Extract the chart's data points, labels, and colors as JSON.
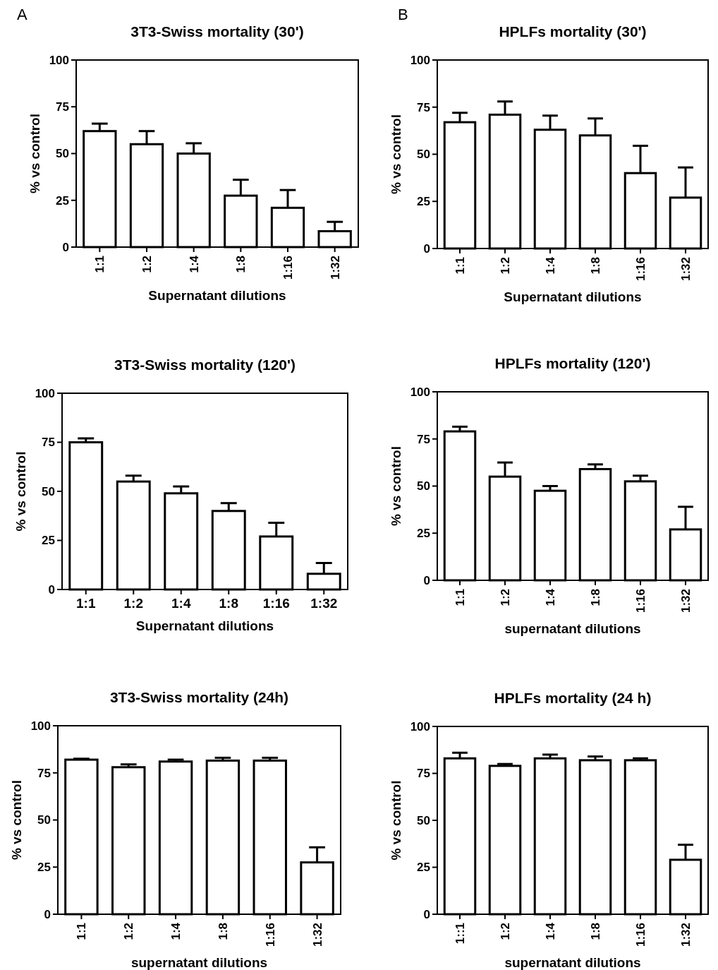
{
  "chart_data": [
    {
      "type": "bar",
      "title": "3T3-Swiss mortality (30')",
      "xlabel": "Supernatant dilutions",
      "ylabel": "% vs control",
      "annotations": [
        "A"
      ],
      "categories": [
        "1:1",
        "1:2",
        "1:4",
        "1:8",
        "1:16",
        "1:32"
      ],
      "values": [
        62,
        55,
        50,
        27.5,
        21,
        8.5
      ],
      "errors": [
        [
          62,
          66
        ],
        [
          55,
          62
        ],
        [
          50,
          55.5
        ],
        [
          27.5,
          36
        ],
        [
          21,
          30.5
        ],
        [
          8.5,
          13.5
        ]
      ],
      "color": "#ffffff",
      "ylim": [
        0,
        100
      ],
      "yticks": [
        0,
        25,
        50,
        75,
        100
      ],
      "grid": false
    },
    {
      "type": "bar",
      "title": "HPLFs mortality (30')",
      "xlabel": "Supernatant dilutions",
      "ylabel": "% vs control",
      "annotations": [
        "B"
      ],
      "categories": [
        "1:1",
        "1:2",
        "1:4",
        "1:8",
        "1:16",
        "1:32"
      ],
      "values": [
        67,
        71,
        63,
        60,
        40,
        27
      ],
      "errors": [
        [
          67,
          72
        ],
        [
          71,
          78
        ],
        [
          63,
          70.5
        ],
        [
          60,
          69
        ],
        [
          40,
          54.5
        ],
        [
          27,
          43
        ]
      ],
      "color": "#ffffff",
      "ylim": [
        0,
        100
      ],
      "yticks": [
        0,
        25,
        50,
        75,
        100
      ],
      "grid": false
    },
    {
      "type": "bar",
      "title": "3T3-Swiss mortality (120')",
      "xlabel": "Supernatant dilutions",
      "ylabel": "% vs control",
      "categories": [
        "1:1",
        "1:2",
        "1:4",
        "1:8",
        "1:16",
        "1:32"
      ],
      "values": [
        75,
        55,
        49,
        40,
        27,
        8
      ],
      "errors": [
        [
          75,
          77
        ],
        [
          55,
          58
        ],
        [
          49,
          52.5
        ],
        [
          40,
          44
        ],
        [
          27,
          34
        ],
        [
          8,
          13.5
        ]
      ],
      "color": "#ffffff",
      "ylim": [
        0,
        100
      ],
      "yticks": [
        0,
        25,
        50,
        75,
        100
      ],
      "grid": false
    },
    {
      "type": "bar",
      "title": "HPLFs  mortality (120')",
      "xlabel": "supernatant dilutions",
      "ylabel": "% vs control",
      "categories": [
        "1:1",
        "1:2",
        "1:4",
        "1:8",
        "1:16",
        "1:32"
      ],
      "values": [
        79,
        55,
        47.5,
        59,
        52.5,
        27
      ],
      "errors": [
        [
          79,
          81.5
        ],
        [
          55,
          62.5
        ],
        [
          47.5,
          50
        ],
        [
          59,
          61.5
        ],
        [
          52.5,
          55.5
        ],
        [
          27,
          39
        ]
      ],
      "color": "#ffffff",
      "ylim": [
        0,
        100
      ],
      "yticks": [
        0,
        25,
        50,
        75,
        100
      ],
      "grid": false
    },
    {
      "type": "bar",
      "title": "3T3-Swiss mortality (24h)",
      "xlabel": "supernatant dilutions",
      "ylabel": "% vs control",
      "categories": [
        "1:1",
        "1:2",
        "1:4",
        "1:8",
        "1:16",
        "1:32"
      ],
      "values": [
        82,
        78,
        81,
        81.5,
        81.5,
        27.5
      ],
      "errors": [
        [
          82,
          82.5
        ],
        [
          78,
          79.5
        ],
        [
          81,
          82
        ],
        [
          81.5,
          83
        ],
        [
          81.5,
          83
        ],
        [
          27.5,
          35.5
        ]
      ],
      "color": "#ffffff",
      "ylim": [
        0,
        100
      ],
      "yticks": [
        0,
        25,
        50,
        75,
        100
      ],
      "grid": false
    },
    {
      "type": "bar",
      "title": "HPLFs  mortality (24 h)",
      "xlabel": "supernatant dilutions",
      "ylabel": "% vs control",
      "categories": [
        "1::1",
        "1:2",
        "1:4",
        "1:8",
        "1:16",
        "1:32"
      ],
      "values": [
        83,
        79,
        83,
        82,
        82,
        29
      ],
      "errors": [
        [
          83,
          86
        ],
        [
          79,
          80
        ],
        [
          83,
          85
        ],
        [
          82,
          84
        ],
        [
          82,
          83
        ],
        [
          29,
          37
        ]
      ],
      "color": "#ffffff",
      "ylim": [
        0,
        100
      ],
      "yticks": [
        0,
        25,
        50,
        75,
        100
      ],
      "grid": false
    }
  ]
}
